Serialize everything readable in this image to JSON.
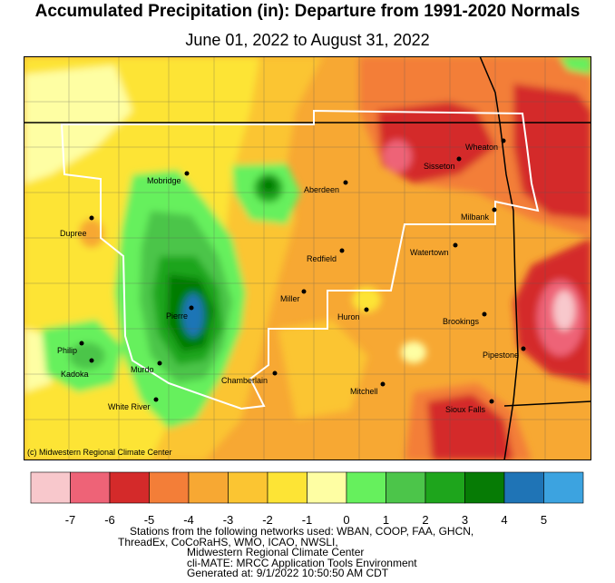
{
  "title": "Accumulated Precipitation (in): Departure from 1991-2020 Normals",
  "subtitle": "June 01, 2022 to August 31, 2022",
  "credit": "(c) Midwestern Regional Climate Center",
  "cities": [
    {
      "name": "Mobridge"
    },
    {
      "name": "Aberdeen"
    },
    {
      "name": "Sisseton"
    },
    {
      "name": "Wheaton"
    },
    {
      "name": "Milbank"
    },
    {
      "name": "Dupree"
    },
    {
      "name": "Redfield"
    },
    {
      "name": "Watertown"
    },
    {
      "name": "Miller"
    },
    {
      "name": "Pierre"
    },
    {
      "name": "Huron"
    },
    {
      "name": "Brookings"
    },
    {
      "name": "Philip"
    },
    {
      "name": "Kadoka"
    },
    {
      "name": "Murdo"
    },
    {
      "name": "Chamberlain"
    },
    {
      "name": "Pipestone"
    },
    {
      "name": "Mitchell"
    },
    {
      "name": "White River"
    },
    {
      "name": "Sioux Falls"
    }
  ],
  "legend": {
    "colors": [
      "#f8c8cc",
      "#ee6377",
      "#d42a2a",
      "#f37e38",
      "#f7a833",
      "#fbc532",
      "#fde435",
      "#fefea3",
      "#66f05d",
      "#4cc54a",
      "#1ea51c",
      "#067b05",
      "#1f74b6",
      "#3ca3e0"
    ],
    "ticks": [
      "-7",
      "-6",
      "-5",
      "-4",
      "-3",
      "-2",
      "-1",
      "0",
      "1",
      "2",
      "3",
      "4",
      "5"
    ]
  },
  "footer": [
    "Stations from the following networks used: WBAN, COOP, FAA, GHCN,",
    "ThreadEx, CoCoRaHS, WMO, ICAO, NWSLI,",
    "Midwestern Regional Climate Center",
    "cli-MATE: MRCC Application Tools Environment",
    "Generated at: 9/1/2022 10:50:50 AM CDT"
  ]
}
